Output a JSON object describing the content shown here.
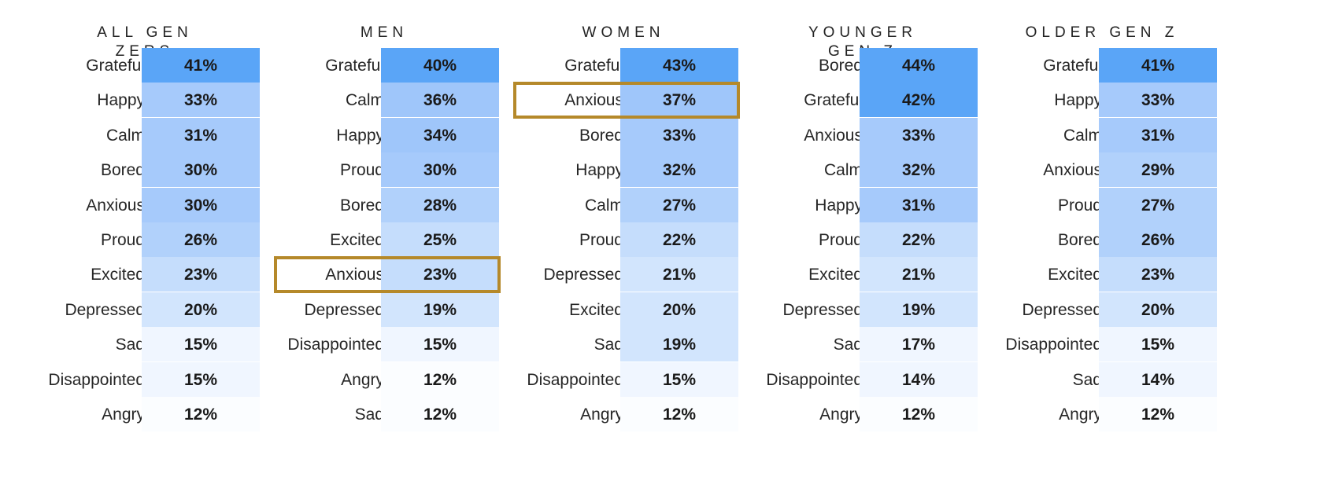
{
  "chart_data": [
    {
      "type": "table",
      "title": "ALL GEN ZERS",
      "categories": [
        "Grateful",
        "Happy",
        "Calm",
        "Bored",
        "Anxious",
        "Proud",
        "Excited",
        "Depressed",
        "Sad",
        "Disappointed",
        "Angry"
      ],
      "values": [
        41,
        33,
        31,
        30,
        30,
        26,
        23,
        20,
        15,
        15,
        12
      ],
      "value_labels": [
        "41%",
        "33%",
        "31%",
        "30%",
        "30%",
        "26%",
        "23%",
        "20%",
        "15%",
        "15%",
        "12%"
      ],
      "highlight_index": null
    },
    {
      "type": "table",
      "title": "MEN",
      "categories": [
        "Grateful",
        "Calm",
        "Happy",
        "Proud",
        "Bored",
        "Excited",
        "Anxious",
        "Depressed",
        "Disappointed",
        "Angry",
        "Sad"
      ],
      "values": [
        40,
        36,
        34,
        30,
        28,
        25,
        23,
        19,
        15,
        12,
        12
      ],
      "value_labels": [
        "40%",
        "36%",
        "34%",
        "30%",
        "28%",
        "25%",
        "23%",
        "19%",
        "15%",
        "12%",
        "12%"
      ],
      "highlight_index": 6
    },
    {
      "type": "table",
      "title": "WOMEN",
      "categories": [
        "Grateful",
        "Anxious",
        "Bored",
        "Happy",
        "Calm",
        "Proud",
        "Depressed",
        "Excited",
        "Sad",
        "Disappointed",
        "Angry"
      ],
      "values": [
        43,
        37,
        33,
        32,
        27,
        22,
        21,
        20,
        19,
        15,
        12
      ],
      "value_labels": [
        "43%",
        "37%",
        "33%",
        "32%",
        "27%",
        "22%",
        "21%",
        "20%",
        "19%",
        "15%",
        "12%"
      ],
      "highlight_index": 1
    },
    {
      "type": "table",
      "title": "YOUNGER GEN Z",
      "categories": [
        "Bored",
        "Grateful",
        "Anxious",
        "Calm",
        "Happy",
        "Proud",
        "Excited",
        "Depressed",
        "Sad",
        "Disappointed",
        "Angry"
      ],
      "values": [
        44,
        42,
        33,
        32,
        31,
        22,
        21,
        19,
        17,
        14,
        12
      ],
      "value_labels": [
        "44%",
        "42%",
        "33%",
        "32%",
        "31%",
        "22%",
        "21%",
        "19%",
        "17%",
        "14%",
        "12%"
      ],
      "highlight_index": null
    },
    {
      "type": "table",
      "title": "OLDER GEN Z",
      "categories": [
        "Grateful",
        "Happy",
        "Calm",
        "Anxious",
        "Proud",
        "Bored",
        "Excited",
        "Depressed",
        "Disappointed",
        "Sad",
        "Angry"
      ],
      "values": [
        41,
        33,
        31,
        29,
        27,
        26,
        23,
        20,
        15,
        14,
        12
      ],
      "value_labels": [
        "41%",
        "33%",
        "31%",
        "29%",
        "27%",
        "26%",
        "23%",
        "20%",
        "15%",
        "14%",
        "12%"
      ],
      "highlight_index": null
    }
  ],
  "colors": {
    "shade_scale": [
      "#fbfdff",
      "#f0f6ff",
      "#d2e5fd",
      "#c5ddfc",
      "#b1d1fb",
      "#a6cafb",
      "#9fc6fa",
      "#8fbdf9",
      "#5aa5f7"
    ],
    "highlight": "#b5892a"
  }
}
